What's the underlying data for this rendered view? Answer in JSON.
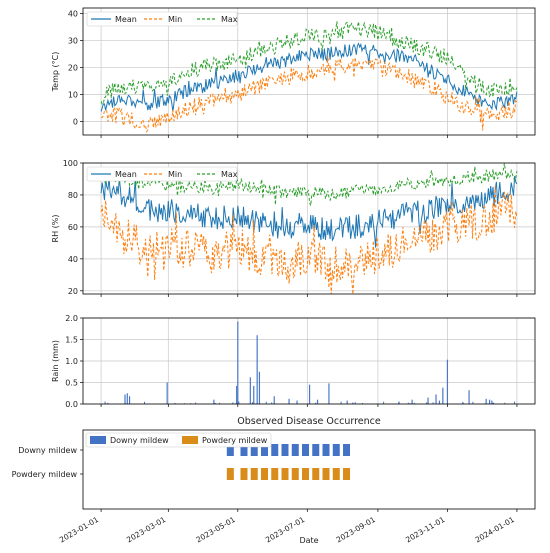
{
  "chart_data": [
    {
      "type": "line",
      "ylabel": "Temp (°C)",
      "ylim": [
        -5,
        42
      ],
      "yticks": [
        0,
        10,
        20,
        30,
        40
      ],
      "grid": true,
      "legend": "top-left",
      "series": [
        {
          "name": "Mean",
          "color": "#1f77b4",
          "style": "solid",
          "x": [
            "2023-01-01",
            "2023-01-20",
            "2023-02-10",
            "2023-03-01",
            "2023-03-20",
            "2023-04-10",
            "2023-05-01",
            "2023-05-20",
            "2023-06-10",
            "2023-07-01",
            "2023-07-20",
            "2023-08-10",
            "2023-09-01",
            "2023-09-20",
            "2023-10-10",
            "2023-11-01",
            "2023-11-20",
            "2023-12-10",
            "2024-01-01"
          ],
          "y": [
            5,
            9,
            6,
            8,
            12,
            14,
            17,
            20,
            22,
            25,
            25,
            27,
            26,
            24,
            21,
            15,
            10,
            6,
            9
          ]
        },
        {
          "name": "Min",
          "color": "#ff7f0e",
          "style": "dashed",
          "x": [
            "2023-01-01",
            "2023-01-20",
            "2023-02-10",
            "2023-03-01",
            "2023-03-20",
            "2023-04-10",
            "2023-05-01",
            "2023-05-20",
            "2023-06-10",
            "2023-07-01",
            "2023-07-20",
            "2023-08-10",
            "2023-09-01",
            "2023-09-20",
            "2023-10-10",
            "2023-11-01",
            "2023-11-20",
            "2023-12-10",
            "2024-01-01"
          ],
          "y": [
            3,
            2,
            -2,
            2,
            5,
            8,
            10,
            13,
            16,
            18,
            20,
            21,
            20,
            18,
            15,
            9,
            4,
            1,
            6
          ]
        },
        {
          "name": "Max",
          "color": "#2ca02c",
          "style": "dashed",
          "x": [
            "2023-01-01",
            "2023-01-20",
            "2023-02-10",
            "2023-03-01",
            "2023-03-20",
            "2023-04-10",
            "2023-05-01",
            "2023-05-20",
            "2023-06-10",
            "2023-07-01",
            "2023-07-20",
            "2023-08-10",
            "2023-09-01",
            "2023-09-20",
            "2023-10-10",
            "2023-11-01",
            "2023-11-20",
            "2023-12-10",
            "2024-01-01"
          ],
          "y": [
            9,
            13,
            12,
            15,
            19,
            21,
            23,
            26,
            29,
            32,
            31,
            35,
            33,
            30,
            27,
            23,
            16,
            11,
            14
          ]
        }
      ]
    },
    {
      "type": "line",
      "ylabel": "RH (%)",
      "ylim": [
        18,
        100
      ],
      "yticks": [
        20,
        40,
        60,
        80,
        100
      ],
      "grid": true,
      "legend": "top-left",
      "series": [
        {
          "name": "Mean",
          "color": "#1f77b4",
          "style": "solid",
          "x": [
            "2023-01-01",
            "2023-01-20",
            "2023-02-10",
            "2023-03-01",
            "2023-03-20",
            "2023-04-10",
            "2023-05-01",
            "2023-05-20",
            "2023-06-10",
            "2023-07-01",
            "2023-07-20",
            "2023-08-10",
            "2023-09-01",
            "2023-09-20",
            "2023-10-10",
            "2023-11-01",
            "2023-11-20",
            "2023-12-10",
            "2024-01-01"
          ],
          "y": [
            85,
            80,
            72,
            70,
            68,
            65,
            66,
            62,
            60,
            62,
            58,
            60,
            63,
            67,
            70,
            74,
            78,
            80,
            86
          ]
        },
        {
          "name": "Min",
          "color": "#ff7f0e",
          "style": "dashed",
          "x": [
            "2023-01-01",
            "2023-01-20",
            "2023-02-10",
            "2023-03-01",
            "2023-03-20",
            "2023-04-10",
            "2023-05-01",
            "2023-05-20",
            "2023-06-10",
            "2023-07-01",
            "2023-07-20",
            "2023-08-10",
            "2023-09-01",
            "2023-09-20",
            "2023-10-10",
            "2023-11-01",
            "2023-11-20",
            "2023-12-10",
            "2024-01-01"
          ],
          "y": [
            75,
            55,
            45,
            48,
            46,
            42,
            48,
            40,
            38,
            42,
            36,
            38,
            42,
            48,
            52,
            60,
            62,
            66,
            74
          ]
        },
        {
          "name": "Max",
          "color": "#2ca02c",
          "style": "dashed",
          "x": [
            "2023-01-01",
            "2023-01-20",
            "2023-02-10",
            "2023-03-01",
            "2023-03-20",
            "2023-04-10",
            "2023-05-01",
            "2023-05-20",
            "2023-06-10",
            "2023-07-01",
            "2023-07-20",
            "2023-08-10",
            "2023-09-01",
            "2023-09-20",
            "2023-10-10",
            "2023-11-01",
            "2023-11-20",
            "2023-12-10",
            "2024-01-01"
          ],
          "y": [
            92,
            90,
            88,
            86,
            85,
            84,
            87,
            84,
            82,
            83,
            80,
            82,
            84,
            86,
            87,
            89,
            91,
            92,
            93
          ]
        }
      ]
    },
    {
      "type": "bar",
      "ylabel": "Rain (mm)",
      "ylim": [
        0,
        2.0
      ],
      "yticks": [
        "0.0",
        "0.5",
        "1.0",
        "1.5",
        "2.0"
      ],
      "grid": true,
      "color": "#4a78c8",
      "series": [
        {
          "x": [
            "2023-01-22",
            "2023-01-24",
            "2023-01-26",
            "2023-02-28",
            "2023-04-10",
            "2023-04-30",
            "2023-05-01",
            "2023-05-12",
            "2023-05-15",
            "2023-05-18",
            "2023-05-20",
            "2023-06-02",
            "2023-06-15",
            "2023-06-22",
            "2023-07-03",
            "2023-07-10",
            "2023-07-20",
            "2023-08-05",
            "2023-10-01",
            "2023-10-15",
            "2023-10-22",
            "2023-10-25",
            "2023-10-28",
            "2023-11-01",
            "2023-11-20",
            "2023-12-05",
            "2023-12-08",
            "2023-12-10"
          ],
          "y": [
            0.22,
            0.25,
            0.18,
            0.5,
            0.1,
            0.42,
            1.92,
            0.62,
            0.42,
            1.6,
            0.75,
            0.18,
            0.12,
            0.08,
            0.45,
            0.1,
            0.48,
            0.08,
            0.1,
            0.15,
            0.22,
            0.08,
            0.38,
            1.03,
            0.32,
            0.12,
            0.1,
            0.08
          ]
        }
      ]
    },
    {
      "type": "bar",
      "title": "Observed Disease Occurrence",
      "xlabel": "Date",
      "legend": "top-left",
      "categories": [
        "Downy mildew",
        "Powdery mildew"
      ],
      "xticks": [
        "2023-01-01",
        "2023-03-01",
        "2023-05-01",
        "2023-07-01",
        "2023-09-01",
        "2023-11-01",
        "2024-01-01"
      ],
      "series": [
        {
          "name": "Downy mildew",
          "color": "#4472c4",
          "x": [
            "2023-04-24",
            "2023-05-06",
            "2023-05-15",
            "2023-05-24",
            "2023-06-02",
            "2023-06-11",
            "2023-06-20",
            "2023-06-29",
            "2023-07-08",
            "2023-07-17",
            "2023-07-26",
            "2023-08-04"
          ]
        },
        {
          "name": "Powdery mildew",
          "color": "#d98c1a",
          "x": [
            "2023-04-24",
            "2023-05-06",
            "2023-05-15",
            "2023-05-24",
            "2023-06-02",
            "2023-06-11",
            "2023-06-20",
            "2023-06-29",
            "2023-07-08",
            "2023-07-17",
            "2023-07-26",
            "2023-08-04"
          ]
        }
      ]
    }
  ]
}
